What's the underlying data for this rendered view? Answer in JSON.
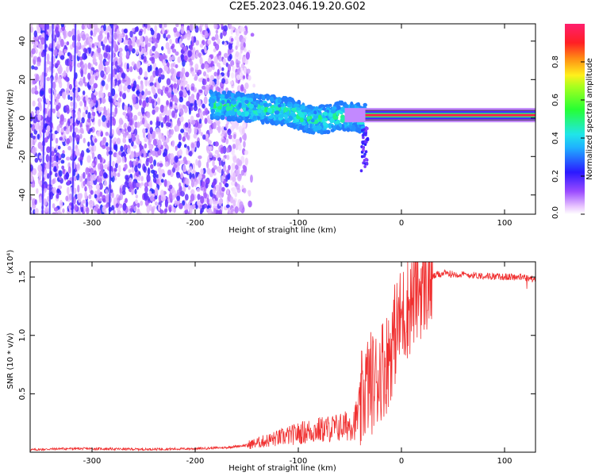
{
  "figure": {
    "title": "C2E5.2023.046.19.20.G02"
  },
  "chart_data": [
    {
      "type": "heatmap",
      "xlabel": "Height of straight line (km)",
      "ylabel": "Frequency (Hz)",
      "xlim": [
        -360,
        130
      ],
      "ylim": [
        -50,
        49
      ],
      "xticks": [
        -300,
        -200,
        -100,
        0,
        100
      ],
      "yticks": [
        -40,
        -20,
        0,
        20,
        40
      ],
      "colorbar": {
        "label": "Normalized spectral amplitude",
        "range": [
          0.0,
          1.0
        ],
        "ticks": [
          "0.0",
          "0.2",
          "0.4",
          "0.6",
          "0.8"
        ],
        "colormap": "rainbow (white-violet-blue-cyan-green-yellow-red-magenta)"
      },
      "regions": [
        {
          "x_range": [
            -360,
            -150
          ],
          "description_value": "broadband noise, amplitude ~0.05-0.25"
        },
        {
          "x_range": [
            -185,
            -35
          ],
          "center_freq": [
            7,
            0
          ],
          "amplitude": [
            0.3,
            0.55
          ]
        },
        {
          "x_range": [
            -35,
            130
          ],
          "center_freq": 1.5,
          "amplitude": 0.95
        }
      ]
    },
    {
      "type": "line",
      "xlabel": "Height of straight line (km)",
      "ylabel": "SNR (10 * v/v)",
      "y_multiplier": "(x10⁴)",
      "xlim": [
        -360,
        130
      ],
      "ylim": [
        0,
        1.63
      ],
      "xticks": [
        -300,
        -200,
        -100,
        0,
        100
      ],
      "yticks": [
        0.5,
        1.0,
        1.5
      ],
      "ytick_labels": [
        "0.5",
        "1.0",
        "1.5"
      ],
      "series": [
        {
          "color": "#f03030",
          "x": [
            -360,
            -330,
            -300,
            -250,
            -200,
            -170,
            -150,
            -130,
            -110,
            -90,
            -70,
            -55,
            -45,
            -40,
            -35,
            -30,
            -25,
            -20,
            -15,
            -10,
            -5,
            0,
            5,
            10,
            15,
            20,
            25,
            30,
            35,
            40,
            60,
            80,
            100,
            115,
            130
          ],
          "y": [
            0.02,
            0.03,
            0.03,
            0.025,
            0.03,
            0.04,
            0.06,
            0.1,
            0.14,
            0.18,
            0.2,
            0.22,
            0.26,
            0.38,
            0.55,
            0.6,
            0.6,
            0.72,
            0.75,
            0.9,
            1.05,
            1.15,
            1.22,
            1.3,
            1.38,
            1.42,
            1.45,
            1.5,
            1.52,
            1.53,
            1.52,
            1.51,
            1.5,
            1.5,
            1.48
          ]
        }
      ]
    }
  ]
}
